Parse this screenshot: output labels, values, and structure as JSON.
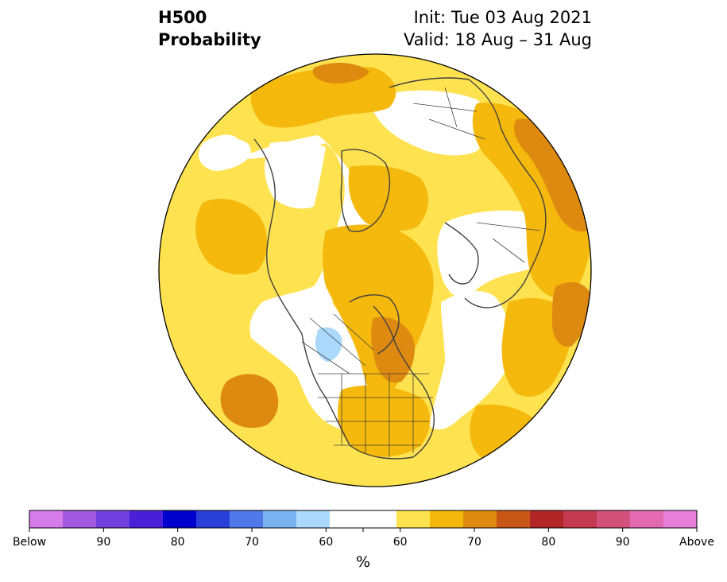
{
  "title": {
    "left_line1": "H500",
    "left_line2": "Probability",
    "init": "Init: Tue 03 Aug 2021",
    "valid": "Valid: 18 Aug – 31 Aug"
  },
  "colorbar": {
    "colors": [
      "#d67bea",
      "#a259e0",
      "#7240de",
      "#4a1fd8",
      "#0000cc",
      "#2a3ed8",
      "#4f78e8",
      "#7ab3f2",
      "#aad9fb",
      "#ffffff",
      "#ffffff",
      "#fee24f",
      "#f4b90c",
      "#de8a11",
      "#c85716",
      "#b22525",
      "#c43a50",
      "#d3527b",
      "#e36ab2",
      "#e87fd8"
    ],
    "tick_labels": [
      "Below",
      "90",
      "80",
      "70",
      "60",
      "60",
      "70",
      "80",
      "90",
      "Above"
    ],
    "unit": "%"
  },
  "map": {
    "fill_colors": {
      "above_50": "#fee24f",
      "above_60": "#f4b90c",
      "above_70": "#de8a11",
      "above_80": "#c85716",
      "below_60": "#aad9fb",
      "neutral": "#ffffff"
    },
    "coastline_color": "#404040",
    "regions": [
      {
        "name": "north-america-neutral",
        "category": "neutral"
      },
      {
        "name": "greenland-neutral",
        "category": "neutral"
      },
      {
        "name": "siberia-neutral",
        "category": "neutral"
      },
      {
        "name": "europe-neutral",
        "category": "neutral"
      },
      {
        "name": "atlantic-neutral",
        "category": "neutral"
      },
      {
        "name": "pacific-neutral",
        "category": "neutral"
      },
      {
        "name": "hudson-bay-above-60",
        "category": "above_60"
      },
      {
        "name": "eastern-us-above-60",
        "category": "above_60"
      },
      {
        "name": "arctic-above-60",
        "category": "above_60"
      },
      {
        "name": "east-asia-above-60",
        "category": "above_60"
      },
      {
        "name": "africa-above-60",
        "category": "above_60"
      },
      {
        "name": "north-pacific-above-60",
        "category": "above_60"
      },
      {
        "name": "east-pacific-above-70",
        "category": "above_70"
      },
      {
        "name": "east-asia-above-70",
        "category": "above_70"
      },
      {
        "name": "east-siberia-above-70",
        "category": "above_70"
      },
      {
        "name": "southwest-canada-below-60",
        "category": "below_60"
      }
    ]
  }
}
